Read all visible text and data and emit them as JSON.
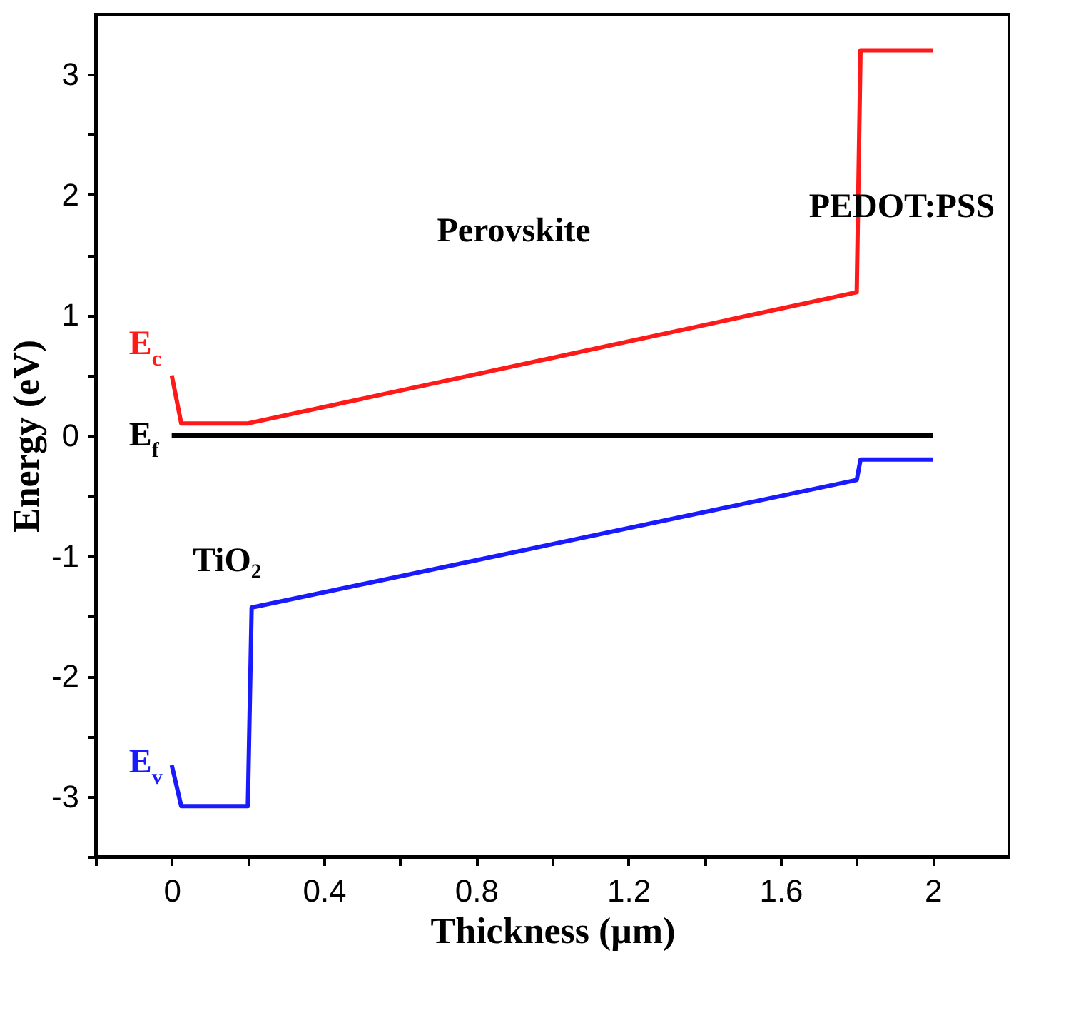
{
  "chart_data": {
    "type": "line",
    "xlabel": "Thickness (μm)",
    "ylabel": "Energy (eV)",
    "xlim": [
      -0.2,
      2.2
    ],
    "ylim": [
      -3.5,
      3.5
    ],
    "xticks": [
      {
        "value": -0.2,
        "label": null
      },
      0,
      {
        "value": 0.2,
        "label": null
      },
      0.4,
      {
        "value": 0.6,
        "label": null
      },
      0.8,
      {
        "value": 1.0,
        "label": null
      },
      1.2,
      {
        "value": 1.4,
        "label": null
      },
      1.6,
      {
        "value": 1.8,
        "label": null
      },
      2
    ],
    "yticks": [
      {
        "value": -3.5,
        "label": null
      },
      -3,
      {
        "value": -2.5,
        "label": null
      },
      -2,
      {
        "value": -1.5,
        "label": null
      },
      -1,
      {
        "value": -0.5,
        "label": null
      },
      0,
      {
        "value": 0.5,
        "label": null
      },
      1,
      {
        "value": 1.5,
        "label": null
      },
      2,
      {
        "value": 2.5,
        "label": null
      },
      3
    ],
    "grid": false,
    "legend": "left",
    "marker": "none",
    "line_style": "solid",
    "series": [
      {
        "name": "E$_{c}$",
        "color": "#ff1a1a",
        "x": [
          0.0,
          0.025,
          0.2,
          1.8,
          1.81,
          2.0
        ],
        "values": [
          0.5,
          0.1,
          0.1,
          1.19,
          3.2,
          3.2
        ]
      },
      {
        "name": "E$_{f}$",
        "color": "#000000",
        "x": [
          0.0,
          2.0
        ],
        "values": [
          0,
          0
        ]
      },
      {
        "name": "E$_{v}$",
        "color": "#1a1aff",
        "x": [
          0.0,
          0.025,
          0.2,
          0.21,
          1.8,
          1.81,
          2.0
        ],
        "values": [
          -2.74,
          -3.08,
          -3.08,
          -1.43,
          -0.37,
          -0.2,
          -0.2
        ]
      }
    ],
    "annotations": [
      "Perovskite",
      "PEDOT:PSS",
      "TiO₂"
    ]
  }
}
